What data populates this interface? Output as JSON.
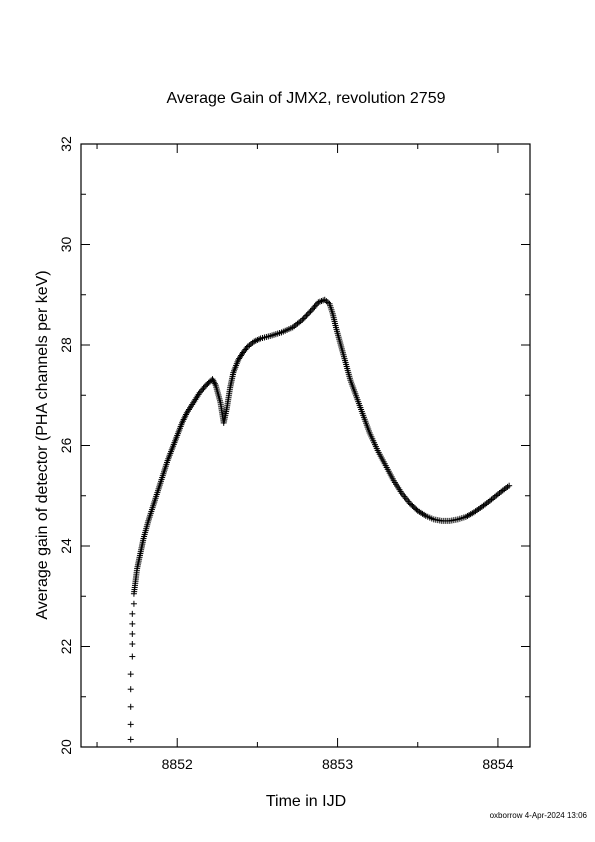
{
  "footer": "oxborrow 4-Apr-2024 13:06",
  "chart_data": {
    "type": "scatter",
    "title": "Average Gain of JMX2, revolution 2759",
    "xlabel": "Time in IJD",
    "ylabel": "Average gain of detector (PHA channels per keV)",
    "xlim": [
      8851.4,
      8854.2
    ],
    "ylim": [
      20,
      32
    ],
    "xticks": [
      8852,
      8853,
      8854
    ],
    "xtick_labels": [
      "8852",
      "8853",
      "8854"
    ],
    "yticks": [
      20,
      22,
      24,
      26,
      28,
      30,
      32
    ],
    "ytick_labels": [
      "20",
      "22",
      "24",
      "26",
      "28",
      "30",
      "32"
    ],
    "grid": false,
    "legend": "none",
    "marker": "+",
    "colors": {
      "marker": "#000000",
      "axes": "#000000"
    },
    "series": [
      {
        "x": [
          8851.71,
          8851.71,
          8851.71,
          8851.71,
          8851.71,
          8851.72,
          8851.72,
          8851.72,
          8851.72,
          8851.72,
          8851.73,
          8851.73,
          8851.74,
          8851.75,
          8851.77,
          8851.79,
          8851.82,
          8851.85,
          8851.88,
          8851.91,
          8851.94,
          8851.97,
          8852.0,
          8852.03,
          8852.06,
          8852.1,
          8852.14,
          8852.18,
          8852.22,
          8852.24,
          8852.27,
          8852.29,
          8852.31,
          8852.33,
          8852.35,
          8852.38,
          8852.41,
          8852.44,
          8852.48,
          8852.52,
          8852.58,
          8852.65,
          8852.72,
          8852.78,
          8852.84,
          8852.88,
          8852.92,
          8852.95,
          8852.97,
          8852.99,
          8853.02,
          8853.05,
          8853.08,
          8853.12,
          8853.16,
          8853.2,
          8853.25,
          8853.3,
          8853.35,
          8853.4,
          8853.45,
          8853.5,
          8853.55,
          8853.6,
          8853.65,
          8853.7,
          8853.75,
          8853.8,
          8853.85,
          8853.9,
          8853.95,
          8854.0,
          8854.04,
          8854.07
        ],
        "y": [
          20.15,
          20.45,
          20.8,
          21.15,
          21.45,
          21.8,
          22.05,
          22.25,
          22.45,
          22.65,
          22.85,
          23.05,
          23.3,
          23.55,
          23.85,
          24.15,
          24.5,
          24.8,
          25.1,
          25.4,
          25.7,
          25.95,
          26.2,
          26.45,
          26.65,
          26.85,
          27.05,
          27.2,
          27.32,
          27.2,
          26.85,
          26.45,
          26.75,
          27.15,
          27.45,
          27.7,
          27.85,
          27.97,
          28.07,
          28.13,
          28.18,
          28.25,
          28.35,
          28.5,
          28.7,
          28.85,
          28.9,
          28.82,
          28.62,
          28.35,
          28.0,
          27.65,
          27.3,
          26.95,
          26.6,
          26.25,
          25.9,
          25.6,
          25.3,
          25.05,
          24.85,
          24.7,
          24.6,
          24.53,
          24.5,
          24.5,
          24.53,
          24.58,
          24.67,
          24.78,
          24.9,
          25.03,
          25.13,
          25.2
        ]
      }
    ]
  }
}
